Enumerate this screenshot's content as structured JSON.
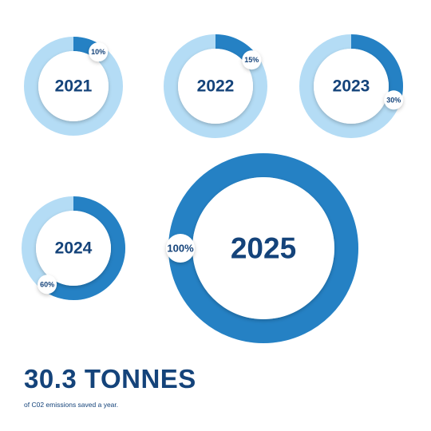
{
  "colors": {
    "accent": "#2581C4",
    "track": "#B4DCF5",
    "text": "#14437A",
    "background": "#FFFFFF"
  },
  "chart_data": {
    "type": "donut",
    "series": [
      {
        "label": "2021",
        "value": 10,
        "value_label": "10%"
      },
      {
        "label": "2022",
        "value": 15,
        "value_label": "15%"
      },
      {
        "label": "2023",
        "value": 30,
        "value_label": "30%"
      },
      {
        "label": "2024",
        "value": 60,
        "value_label": "60%"
      },
      {
        "label": "2025",
        "value": 100,
        "value_label": "100%"
      }
    ]
  },
  "summary": {
    "headline": "30.3 TONNES",
    "subline": "of C02 emissions saved a year."
  }
}
